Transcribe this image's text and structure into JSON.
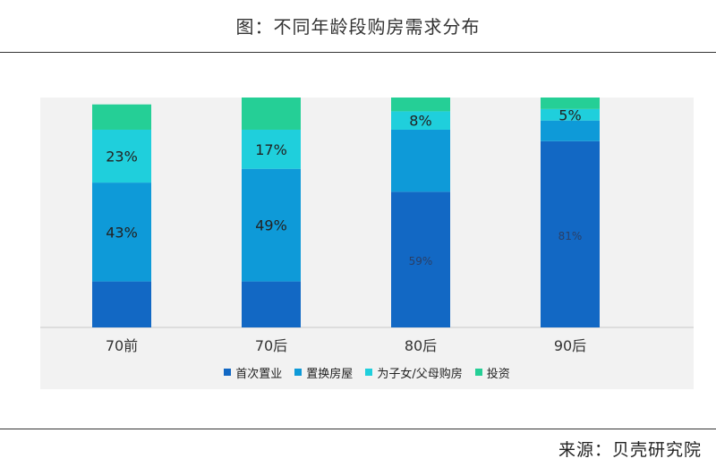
{
  "title": "图：不同年龄段购房需求分布",
  "source": "来源：贝壳研究院",
  "chart_data": {
    "type": "bar",
    "stacked": true,
    "categories": [
      "70前",
      "70后",
      "80后",
      "90后"
    ],
    "series": [
      {
        "name": "首次置业",
        "color": "#1268c4",
        "values": [
          20,
          20,
          59,
          81
        ],
        "labels": [
          "",
          "",
          "59%",
          "81%"
        ]
      },
      {
        "name": "置换房屋",
        "color": "#0e9ad8",
        "values": [
          43,
          49,
          27,
          9
        ],
        "labels": [
          "43%",
          "49%",
          "",
          ""
        ]
      },
      {
        "name": "为子女/父母购房",
        "color": "#1fcfdc",
        "values": [
          23,
          17,
          8,
          5
        ],
        "labels": [
          "23%",
          "17%",
          "8%",
          "5%"
        ]
      },
      {
        "name": "投资",
        "color": "#25cf96",
        "values": [
          11,
          14,
          6,
          5
        ],
        "labels": [
          "",
          "",
          "",
          ""
        ]
      }
    ],
    "ylim": [
      0,
      100
    ],
    "grid": false,
    "legend": "bottom"
  }
}
